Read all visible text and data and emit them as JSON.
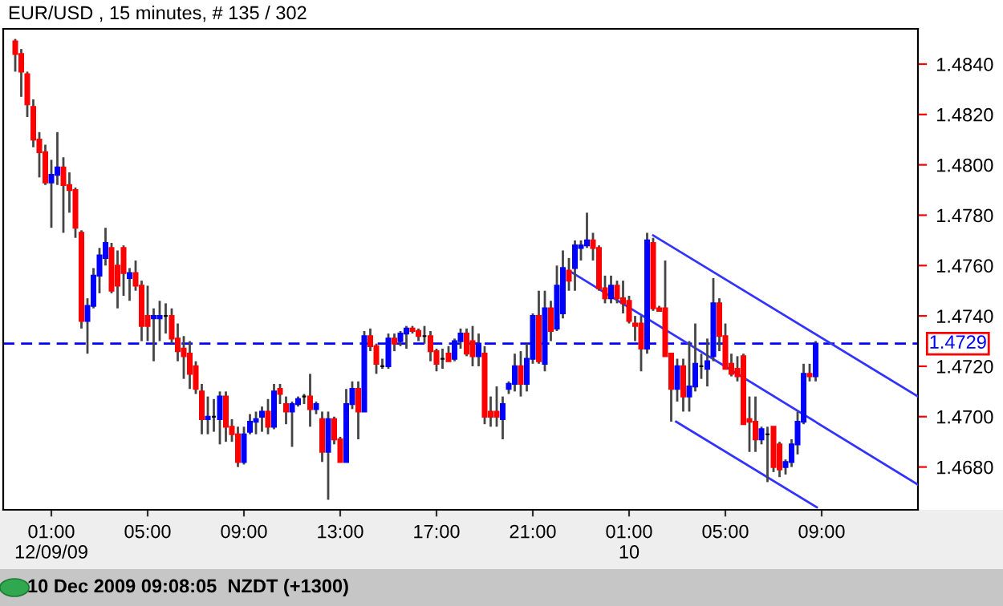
{
  "chart_data": {
    "type": "candlestick",
    "title": "EUR/USD , 15 minutes, # 135 / 302",
    "annotations": [
      "10 Dec 2009 09:08:05  NZDT (+1300)"
    ],
    "x": [
      "2009-12-08T23:30",
      "2009-12-08T23:45",
      "2009-12-09T00:00",
      "2009-12-09T00:15",
      "2009-12-09T00:30",
      "2009-12-09T00:45",
      "2009-12-09T01:00",
      "2009-12-09T01:15",
      "2009-12-09T01:30",
      "2009-12-09T01:45",
      "2009-12-09T02:00",
      "2009-12-09T02:15",
      "2009-12-09T02:30",
      "2009-12-09T02:45",
      "2009-12-09T03:00",
      "2009-12-09T03:15",
      "2009-12-09T03:30",
      "2009-12-09T03:45",
      "2009-12-09T04:00",
      "2009-12-09T04:15",
      "2009-12-09T04:30",
      "2009-12-09T04:45",
      "2009-12-09T05:00",
      "2009-12-09T05:15",
      "2009-12-09T05:30",
      "2009-12-09T05:45",
      "2009-12-09T06:00",
      "2009-12-09T06:15",
      "2009-12-09T06:30",
      "2009-12-09T06:45",
      "2009-12-09T07:00",
      "2009-12-09T07:15",
      "2009-12-09T07:30",
      "2009-12-09T07:45",
      "2009-12-09T08:00",
      "2009-12-09T08:15",
      "2009-12-09T08:30",
      "2009-12-09T08:45",
      "2009-12-09T09:00",
      "2009-12-09T09:15",
      "2009-12-09T09:30",
      "2009-12-09T09:45",
      "2009-12-09T10:00",
      "2009-12-09T10:15",
      "2009-12-09T10:30",
      "2009-12-09T10:45",
      "2009-12-09T11:00",
      "2009-12-09T11:15",
      "2009-12-09T11:30",
      "2009-12-09T11:45",
      "2009-12-09T12:00",
      "2009-12-09T12:15",
      "2009-12-09T12:30",
      "2009-12-09T12:45",
      "2009-12-09T13:00",
      "2009-12-09T13:15",
      "2009-12-09T13:30",
      "2009-12-09T13:45",
      "2009-12-09T14:00",
      "2009-12-09T14:15",
      "2009-12-09T14:30",
      "2009-12-09T14:45",
      "2009-12-09T15:00",
      "2009-12-09T15:15",
      "2009-12-09T15:30",
      "2009-12-09T15:45",
      "2009-12-09T16:00",
      "2009-12-09T16:15",
      "2009-12-09T16:30",
      "2009-12-09T16:45",
      "2009-12-09T17:00",
      "2009-12-09T17:15",
      "2009-12-09T17:30",
      "2009-12-09T17:45",
      "2009-12-09T18:00",
      "2009-12-09T18:15",
      "2009-12-09T18:30",
      "2009-12-09T18:45",
      "2009-12-09T19:00",
      "2009-12-09T19:15",
      "2009-12-09T19:30",
      "2009-12-09T19:45",
      "2009-12-09T20:00",
      "2009-12-09T20:15",
      "2009-12-09T20:30",
      "2009-12-09T20:45",
      "2009-12-09T21:00",
      "2009-12-09T21:15",
      "2009-12-09T21:30",
      "2009-12-09T21:45",
      "2009-12-09T22:00",
      "2009-12-09T22:15",
      "2009-12-09T22:30",
      "2009-12-09T22:45",
      "2009-12-09T23:00",
      "2009-12-09T23:15",
      "2009-12-09T23:30",
      "2009-12-09T23:45",
      "2009-12-10T00:00",
      "2009-12-10T00:15",
      "2009-12-10T00:30",
      "2009-12-10T00:45",
      "2009-12-10T01:00",
      "2009-12-10T01:15",
      "2009-12-10T01:30",
      "2009-12-10T01:45",
      "2009-12-10T02:00",
      "2009-12-10T02:15",
      "2009-12-10T02:30",
      "2009-12-10T02:45",
      "2009-12-10T03:00",
      "2009-12-10T03:15",
      "2009-12-10T03:30",
      "2009-12-10T03:45",
      "2009-12-10T04:00",
      "2009-12-10T04:15",
      "2009-12-10T04:30",
      "2009-12-10T04:45",
      "2009-12-10T05:00",
      "2009-12-10T05:15",
      "2009-12-10T05:30",
      "2009-12-10T05:45",
      "2009-12-10T06:00",
      "2009-12-10T06:15",
      "2009-12-10T06:30",
      "2009-12-10T06:45",
      "2009-12-10T07:00",
      "2009-12-10T07:15",
      "2009-12-10T07:30",
      "2009-12-10T07:45",
      "2009-12-10T08:00",
      "2009-12-10T08:15",
      "2009-12-10T08:30",
      "2009-12-10T08:45"
    ],
    "ohlc": [
      [
        1.4849,
        1.485,
        1.4837,
        1.4844
      ],
      [
        1.4844,
        1.4846,
        1.4827,
        1.4837
      ],
      [
        1.4836,
        1.4837,
        1.4819,
        1.4824
      ],
      [
        1.4823,
        1.4826,
        1.4807,
        1.481
      ],
      [
        1.481,
        1.4813,
        1.4795,
        1.4805
      ],
      [
        1.4805,
        1.4808,
        1.4792,
        1.4793
      ],
      [
        1.4793,
        1.4802,
        1.4775,
        1.4796
      ],
      [
        1.4796,
        1.4813,
        1.4792,
        1.4799
      ],
      [
        1.4799,
        1.4803,
        1.4773,
        1.4792
      ],
      [
        1.4792,
        1.4797,
        1.4781,
        1.479
      ],
      [
        1.479,
        1.4791,
        1.4771,
        1.4775
      ],
      [
        1.4773,
        1.4774,
        1.4735,
        1.4738
      ],
      [
        1.4738,
        1.4747,
        1.4725,
        1.4744
      ],
      [
        1.4744,
        1.4759,
        1.4743,
        1.4756
      ],
      [
        1.4756,
        1.4767,
        1.4749,
        1.4764
      ],
      [
        1.4763,
        1.4775,
        1.476,
        1.4769
      ],
      [
        1.4767,
        1.4769,
        1.4749,
        1.475
      ],
      [
        1.476,
        1.4766,
        1.4743,
        1.4752
      ],
      [
        1.4767,
        1.4768,
        1.4748,
        1.4757
      ],
      [
        1.4755,
        1.4759,
        1.4746,
        1.4757
      ],
      [
        1.4757,
        1.4762,
        1.475,
        1.4752
      ],
      [
        1.4752,
        1.4754,
        1.473,
        1.4736
      ],
      [
        1.474,
        1.4752,
        1.473,
        1.4736
      ],
      [
        1.4739,
        1.4743,
        1.4722,
        1.474
      ],
      [
        1.4739,
        1.4746,
        1.473,
        1.474
      ],
      [
        1.474,
        1.4745,
        1.4733,
        1.474
      ],
      [
        1.474,
        1.4743,
        1.4729,
        1.4731
      ],
      [
        1.4731,
        1.4737,
        1.4722,
        1.4726
      ],
      [
        1.4727,
        1.4732,
        1.4715,
        1.4724
      ],
      [
        1.4725,
        1.473,
        1.4711,
        1.4717
      ],
      [
        1.472,
        1.4722,
        1.4709,
        1.4711
      ],
      [
        1.471,
        1.4713,
        1.4693,
        1.4699
      ],
      [
        1.4699,
        1.4708,
        1.4693,
        1.47
      ],
      [
        1.47,
        1.4707,
        1.4694,
        1.47
      ],
      [
        1.4699,
        1.471,
        1.4689,
        1.4708
      ],
      [
        1.4708,
        1.471,
        1.469,
        1.4696
      ],
      [
        1.4696,
        1.4699,
        1.469,
        1.4693
      ],
      [
        1.4693,
        1.4696,
        1.468,
        1.4682
      ],
      [
        1.4682,
        1.4696,
        1.4681,
        1.4693
      ],
      [
        1.4694,
        1.4701,
        1.4693,
        1.4698
      ],
      [
        1.4698,
        1.4702,
        1.4693,
        1.4699
      ],
      [
        1.47,
        1.4704,
        1.4694,
        1.4702
      ],
      [
        1.4702,
        1.4707,
        1.4693,
        1.4696
      ],
      [
        1.4696,
        1.4713,
        1.4695,
        1.471
      ],
      [
        1.4711,
        1.4713,
        1.4705,
        1.4709
      ],
      [
        1.4705,
        1.4708,
        1.4697,
        1.4702
      ],
      [
        1.4702,
        1.4706,
        1.4688,
        1.4705
      ],
      [
        1.4705,
        1.4708,
        1.4704,
        1.4707
      ],
      [
        1.4708,
        1.4709,
        1.4705,
        1.4708
      ],
      [
        1.4708,
        1.4717,
        1.4696,
        1.4703
      ],
      [
        1.4703,
        1.4706,
        1.4701,
        1.4705
      ],
      [
        1.4699,
        1.4702,
        1.4682,
        1.4686
      ],
      [
        1.4686,
        1.4702,
        1.4667,
        1.4699
      ],
      [
        1.4699,
        1.47,
        1.4689,
        1.4691
      ],
      [
        1.4691,
        1.4692,
        1.4682,
        1.4682
      ],
      [
        1.4682,
        1.4711,
        1.4682,
        1.4705
      ],
      [
        1.4705,
        1.4714,
        1.4703,
        1.4711
      ],
      [
        1.4711,
        1.4714,
        1.4691,
        1.4702
      ],
      [
        1.4702,
        1.4734,
        1.4702,
        1.4732
      ],
      [
        1.4732,
        1.4735,
        1.4726,
        1.4728
      ],
      [
        1.4728,
        1.4729,
        1.4717,
        1.4721
      ],
      [
        1.472,
        1.4723,
        1.4719,
        1.472
      ],
      [
        1.472,
        1.4733,
        1.4719,
        1.4731
      ],
      [
        1.4731,
        1.4733,
        1.4726,
        1.4729
      ],
      [
        1.473,
        1.4734,
        1.4728,
        1.4733
      ],
      [
        1.4733,
        1.4736,
        1.4727,
        1.4735
      ],
      [
        1.4735,
        1.4736,
        1.4733,
        1.4734
      ],
      [
        1.4734,
        1.4735,
        1.473,
        1.4732
      ],
      [
        1.4732,
        1.4736,
        1.4729,
        1.4732
      ],
      [
        1.4732,
        1.4734,
        1.4722,
        1.4726
      ],
      [
        1.4726,
        1.4727,
        1.4718,
        1.4721
      ],
      [
        1.4723,
        1.4727,
        1.4719,
        1.4723
      ],
      [
        1.4725,
        1.4728,
        1.4722,
        1.4722
      ],
      [
        1.4723,
        1.4731,
        1.4722,
        1.473
      ],
      [
        1.473,
        1.4735,
        1.4727,
        1.4733
      ],
      [
        1.4733,
        1.4735,
        1.4724,
        1.4725
      ],
      [
        1.473,
        1.4736,
        1.472,
        1.4724
      ],
      [
        1.4724,
        1.4733,
        1.472,
        1.4729
      ],
      [
        1.4725,
        1.4728,
        1.4697,
        1.47
      ],
      [
        1.4702,
        1.4708,
        1.4696,
        1.47
      ],
      [
        1.4702,
        1.4712,
        1.4696,
        1.47
      ],
      [
        1.4699,
        1.4708,
        1.4691,
        1.4705
      ],
      [
        1.4711,
        1.4714,
        1.4709,
        1.4713
      ],
      [
        1.4713,
        1.4725,
        1.471,
        1.472
      ],
      [
        1.472,
        1.4726,
        1.4708,
        1.4713
      ],
      [
        1.4713,
        1.4729,
        1.471,
        1.4723
      ],
      [
        1.4723,
        1.4741,
        1.4721,
        1.474
      ],
      [
        1.474,
        1.475,
        1.4721,
        1.4722
      ],
      [
        1.4721,
        1.475,
        1.4718,
        1.4743
      ],
      [
        1.4743,
        1.4746,
        1.473,
        1.4734
      ],
      [
        1.4735,
        1.476,
        1.4734,
        1.4752
      ],
      [
        1.4741,
        1.4766,
        1.4739,
        1.4759
      ],
      [
        1.4758,
        1.4763,
        1.475,
        1.4754
      ],
      [
        1.4759,
        1.477,
        1.475,
        1.4768
      ],
      [
        1.4767,
        1.477,
        1.4762,
        1.4768
      ],
      [
        1.4768,
        1.4781,
        1.4767,
        1.477
      ],
      [
        1.477,
        1.4773,
        1.4762,
        1.4767
      ],
      [
        1.4767,
        1.4768,
        1.475,
        1.4751
      ],
      [
        1.4751,
        1.4756,
        1.4745,
        1.4747
      ],
      [
        1.4747,
        1.4756,
        1.4745,
        1.4752
      ],
      [
        1.4752,
        1.4754,
        1.4745,
        1.4747
      ],
      [
        1.4747,
        1.4754,
        1.4741,
        1.4745
      ],
      [
        1.4746,
        1.4748,
        1.4737,
        1.4738
      ],
      [
        1.4737,
        1.474,
        1.473,
        1.4736
      ],
      [
        1.4737,
        1.474,
        1.4718,
        1.4727
      ],
      [
        1.4727,
        1.4773,
        1.4725,
        1.477
      ],
      [
        1.4769,
        1.4771,
        1.4742,
        1.4743
      ],
      [
        1.4743,
        1.4744,
        1.4742,
        1.4742
      ],
      [
        1.4743,
        1.4762,
        1.4724,
        1.4724
      ],
      [
        1.4725,
        1.4725,
        1.4698,
        1.4711
      ],
      [
        1.4711,
        1.4723,
        1.4706,
        1.472
      ],
      [
        1.472,
        1.4723,
        1.4702,
        1.4708
      ],
      [
        1.4708,
        1.473,
        1.4702,
        1.4712
      ],
      [
        1.4712,
        1.4737,
        1.471,
        1.4721
      ],
      [
        1.472,
        1.4725,
        1.4715,
        1.472
      ],
      [
        1.4719,
        1.4731,
        1.4712,
        1.4722
      ],
      [
        1.4724,
        1.4755,
        1.4722,
        1.4745
      ],
      [
        1.4745,
        1.4747,
        1.4726,
        1.4732
      ],
      [
        1.4732,
        1.4737,
        1.4719,
        1.4719
      ],
      [
        1.4721,
        1.4725,
        1.4716,
        1.4717
      ],
      [
        1.4719,
        1.4724,
        1.4714,
        1.4716
      ],
      [
        1.4724,
        1.4725,
        1.4697,
        1.4697
      ],
      [
        1.4699,
        1.4708,
        1.4686,
        1.4698
      ],
      [
        1.4698,
        1.4708,
        1.4686,
        1.4691
      ],
      [
        1.4691,
        1.4696,
        1.4689,
        1.4695
      ],
      [
        1.4693,
        1.4696,
        1.4674,
        1.4693
      ],
      [
        1.4696,
        1.4696,
        1.4678,
        1.468
      ],
      [
        1.4689,
        1.469,
        1.4676,
        1.4679
      ],
      [
        1.468,
        1.4683,
        1.4677,
        1.4682
      ],
      [
        1.4682,
        1.4691,
        1.468,
        1.4689
      ],
      [
        1.4689,
        1.4702,
        1.4685,
        1.4698
      ],
      [
        1.4698,
        1.4721,
        1.4697,
        1.4717
      ],
      [
        1.4717,
        1.4721,
        1.4714,
        1.4716
      ],
      [
        1.4716,
        1.473,
        1.4714,
        1.4729
      ]
    ],
    "colors": [
      "#ff0000",
      "#ff0000",
      "#ff0000",
      "#ff0000",
      "#ff0000",
      "#ff0000",
      "#0000ff",
      "#0000ff",
      "#ff0000",
      "#ff0000",
      "#ff0000",
      "#ff0000",
      "#0000ff",
      "#0000ff",
      "#0000ff",
      "#0000ff",
      "#ff0000",
      "#ff0000",
      "#ff0000",
      "#0000ff",
      "#ff0000",
      "#ff0000",
      "#ff0000",
      "#0000ff",
      "#0000ff",
      "#000000",
      "#ff0000",
      "#ff0000",
      "#ff0000",
      "#ff0000",
      "#ff0000",
      "#ff0000",
      "#0000ff",
      "#000000",
      "#0000ff",
      "#ff0000",
      "#ff0000",
      "#ff0000",
      "#0000ff",
      "#0000ff",
      "#0000ff",
      "#0000ff",
      "#ff0000",
      "#0000ff",
      "#ff0000",
      "#ff0000",
      "#0000ff",
      "#0000ff",
      "#000000",
      "#ff0000",
      "#0000ff",
      "#ff0000",
      "#0000ff",
      "#ff0000",
      "#ff0000",
      "#0000ff",
      "#0000ff",
      "#ff0000",
      "#0000ff",
      "#ff0000",
      "#ff0000",
      "#000000",
      "#0000ff",
      "#ff0000",
      "#0000ff",
      "#0000ff",
      "#ff0000",
      "#ff0000",
      "#000000",
      "#ff0000",
      "#ff0000",
      "#000000",
      "#ff0000",
      "#0000ff",
      "#0000ff",
      "#ff0000",
      "#ff0000",
      "#0000ff",
      "#ff0000",
      "#ff0000",
      "#ff0000",
      "#0000ff",
      "#0000ff",
      "#0000ff",
      "#ff0000",
      "#0000ff",
      "#0000ff",
      "#ff0000",
      "#0000ff",
      "#ff0000",
      "#0000ff",
      "#0000ff",
      "#ff0000",
      "#0000ff",
      "#0000ff",
      "#0000ff",
      "#ff0000",
      "#ff0000",
      "#ff0000",
      "#0000ff",
      "#ff0000",
      "#ff0000",
      "#ff0000",
      "#ff0000",
      "#ff0000",
      "#0000ff",
      "#ff0000",
      "#ff0000",
      "#ff0000",
      "#ff0000",
      "#0000ff",
      "#ff0000",
      "#0000ff",
      "#0000ff",
      "#000000",
      "#0000ff",
      "#0000ff",
      "#ff0000",
      "#ff0000",
      "#ff0000",
      "#ff0000",
      "#ff0000",
      "#ff0000",
      "#ff0000",
      "#0000ff",
      "#000000",
      "#ff0000",
      "#ff0000",
      "#0000ff",
      "#0000ff",
      "#0000ff",
      "#0000ff",
      "#ff0000",
      "#0000ff"
    ],
    "series": [
      {
        "type": "line",
        "color": "#3333ff",
        "x": [
          "2009-12-10T02:00",
          "2009-12-10T13:00"
        ],
        "values": [
          1.4772,
          1.4708
        ]
      },
      {
        "type": "line",
        "color": "#3333ff",
        "x": [
          "2009-12-09T22:30",
          "2009-12-10T13:00"
        ],
        "values": [
          1.4758,
          1.4673
        ]
      },
      {
        "type": "line",
        "color": "#3333ff",
        "x": [
          "2009-12-10T02:57",
          "2009-12-10T08:48"
        ],
        "values": [
          1.4698,
          1.4664
        ]
      }
    ],
    "ref_lines": [
      {
        "axis": "y",
        "value": 1.4729,
        "label": "1.4729",
        "color": "#0000ff",
        "line_style": "dashed"
      }
    ],
    "xlim": [
      "2009-12-08T23:00",
      "2009-12-10T13:00"
    ],
    "xticks": [
      {
        "value": "2009-12-09T01:00",
        "label": "01:00\n12/09/09"
      },
      {
        "value": "2009-12-09T05:00",
        "label": "05:00"
      },
      {
        "value": "2009-12-09T09:00",
        "label": "09:00"
      },
      {
        "value": "2009-12-09T13:00",
        "label": "13:00"
      },
      {
        "value": "2009-12-09T17:00",
        "label": "17:00"
      },
      {
        "value": "2009-12-09T21:00",
        "label": "21:00"
      },
      {
        "value": "2009-12-10T01:00",
        "label": "01:00\n10"
      },
      {
        "value": "2009-12-10T05:00",
        "label": "05:00"
      },
      {
        "value": "2009-12-10T09:00",
        "label": "09:00"
      }
    ],
    "ylim": [
      1.4663,
      1.4854
    ],
    "yticks": [
      {
        "value": 1.468,
        "label": "1.4680"
      },
      {
        "value": 1.47,
        "label": "1.4700"
      },
      {
        "value": 1.472,
        "label": "1.4720"
      },
      {
        "value": 1.474,
        "label": "1.4740"
      },
      {
        "value": 1.476,
        "label": "1.4760"
      },
      {
        "value": 1.478,
        "label": "1.4780"
      },
      {
        "value": 1.48,
        "label": "1.4800"
      },
      {
        "value": 1.482,
        "label": "1.4820"
      },
      {
        "value": 1.484,
        "label": "1.4840"
      }
    ]
  }
}
